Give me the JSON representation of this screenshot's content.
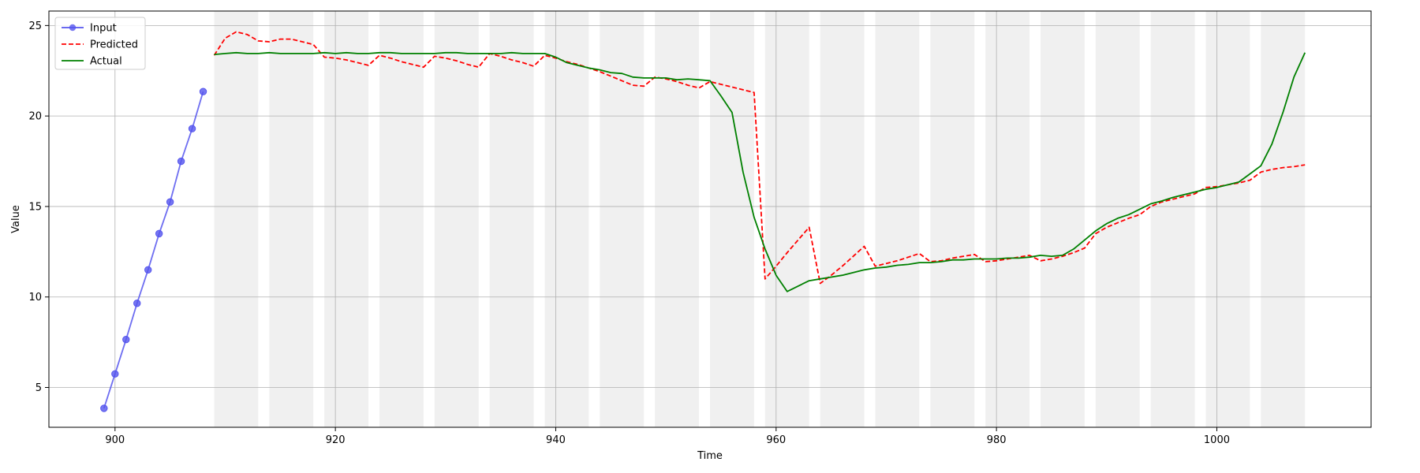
{
  "chart_data": {
    "type": "line",
    "xlabel": "Time",
    "ylabel": "Value",
    "xlim": [
      894,
      1014
    ],
    "ylim": [
      2.8,
      25.8
    ],
    "x_ticks": [
      900,
      920,
      940,
      960,
      980,
      1000
    ],
    "y_ticks": [
      5,
      10,
      15,
      20,
      25
    ],
    "x_tick_labels": [
      "900",
      "920",
      "940",
      "960",
      "980",
      "1000"
    ],
    "y_tick_labels": [
      "5",
      "10",
      "15",
      "20",
      "25"
    ],
    "grid": true,
    "legend_position": "upper-left",
    "shaded_bands": [
      [
        909,
        913
      ],
      [
        914,
        918
      ],
      [
        919,
        923
      ],
      [
        924,
        928
      ],
      [
        929,
        933
      ],
      [
        934,
        938
      ],
      [
        939,
        943
      ],
      [
        944,
        948
      ],
      [
        949,
        953
      ],
      [
        954,
        958
      ],
      [
        959,
        963
      ],
      [
        964,
        968
      ],
      [
        969,
        973
      ],
      [
        974,
        978
      ],
      [
        979,
        983
      ],
      [
        984,
        988
      ],
      [
        989,
        993
      ],
      [
        994,
        998
      ],
      [
        999,
        1003
      ],
      [
        1004,
        1008
      ]
    ],
    "series": [
      {
        "name": "Input",
        "color": "#5555ee",
        "style": "solid-markers",
        "x": [
          899,
          900,
          901,
          902,
          903,
          904,
          905,
          906,
          907,
          908
        ],
        "y": [
          3.85,
          5.75,
          7.65,
          9.65,
          11.5,
          13.5,
          15.25,
          17.5,
          19.3,
          21.35
        ]
      },
      {
        "name": "Predicted",
        "color": "#ff0000",
        "style": "dashed",
        "x": [
          909,
          910,
          911,
          912,
          913,
          914,
          915,
          916,
          917,
          918,
          919,
          920,
          921,
          922,
          923,
          924,
          925,
          926,
          927,
          928,
          929,
          930,
          931,
          932,
          933,
          934,
          935,
          936,
          937,
          938,
          939,
          940,
          941,
          942,
          943,
          944,
          945,
          946,
          947,
          948,
          949,
          950,
          951,
          952,
          953,
          954,
          955,
          956,
          957,
          958,
          959,
          960,
          961,
          962,
          963,
          964,
          965,
          966,
          967,
          968,
          969,
          970,
          971,
          972,
          973,
          974,
          975,
          976,
          977,
          978,
          979,
          980,
          981,
          982,
          983,
          984,
          985,
          986,
          987,
          988,
          989,
          990,
          991,
          992,
          993,
          994,
          995,
          996,
          997,
          998,
          999,
          1000,
          1001,
          1002,
          1003,
          1004,
          1005,
          1006,
          1007,
          1008
        ],
        "y": [
          23.35,
          24.3,
          24.65,
          24.5,
          24.15,
          24.1,
          24.25,
          24.25,
          24.1,
          23.95,
          23.25,
          23.2,
          23.1,
          22.95,
          22.8,
          23.35,
          23.2,
          23.0,
          22.85,
          22.7,
          23.3,
          23.2,
          23.05,
          22.85,
          22.7,
          23.45,
          23.3,
          23.1,
          22.95,
          22.75,
          23.35,
          23.2,
          23.0,
          22.85,
          22.65,
          22.45,
          22.2,
          21.95,
          21.7,
          21.65,
          22.15,
          22.05,
          21.9,
          21.7,
          21.55,
          21.9,
          21.75,
          21.6,
          21.45,
          21.3,
          11.0,
          11.7,
          12.45,
          13.15,
          13.85,
          10.75,
          11.2,
          11.7,
          12.25,
          12.8,
          11.7,
          11.85,
          12.0,
          12.2,
          12.4,
          11.95,
          12.0,
          12.15,
          12.25,
          12.35,
          11.95,
          12.0,
          12.1,
          12.2,
          12.3,
          12.0,
          12.1,
          12.25,
          12.45,
          12.7,
          13.5,
          13.85,
          14.1,
          14.35,
          14.55,
          15.0,
          15.25,
          15.4,
          15.55,
          15.7,
          16.05,
          16.1,
          16.2,
          16.3,
          16.45,
          16.9,
          17.05,
          17.15,
          17.2,
          17.3
        ]
      },
      {
        "name": "Actual",
        "color": "#008000",
        "style": "solid",
        "x": [
          909,
          910,
          911,
          912,
          913,
          914,
          915,
          916,
          917,
          918,
          919,
          920,
          921,
          922,
          923,
          924,
          925,
          926,
          927,
          928,
          929,
          930,
          931,
          932,
          933,
          934,
          935,
          936,
          937,
          938,
          939,
          940,
          941,
          942,
          943,
          944,
          945,
          946,
          947,
          948,
          949,
          950,
          951,
          952,
          953,
          954,
          955,
          956,
          957,
          958,
          959,
          960,
          961,
          962,
          963,
          964,
          965,
          966,
          967,
          968,
          969,
          970,
          971,
          972,
          973,
          974,
          975,
          976,
          977,
          978,
          979,
          980,
          981,
          982,
          983,
          984,
          985,
          986,
          987,
          988,
          989,
          990,
          991,
          992,
          993,
          994,
          995,
          996,
          997,
          998,
          999,
          1000,
          1001,
          1002,
          1003,
          1004,
          1005,
          1006,
          1007,
          1008
        ],
        "y": [
          23.4,
          23.45,
          23.5,
          23.45,
          23.45,
          23.5,
          23.45,
          23.45,
          23.45,
          23.45,
          23.5,
          23.45,
          23.5,
          23.45,
          23.45,
          23.5,
          23.5,
          23.45,
          23.45,
          23.45,
          23.45,
          23.5,
          23.5,
          23.45,
          23.45,
          23.45,
          23.45,
          23.5,
          23.45,
          23.45,
          23.45,
          23.25,
          22.95,
          22.8,
          22.65,
          22.55,
          22.4,
          22.35,
          22.15,
          22.1,
          22.1,
          22.1,
          22.0,
          22.05,
          22.0,
          21.95,
          21.1,
          20.2,
          16.9,
          14.4,
          12.65,
          11.2,
          10.3,
          10.6,
          10.9,
          11.0,
          11.1,
          11.2,
          11.35,
          11.5,
          11.6,
          11.65,
          11.75,
          11.8,
          11.9,
          11.9,
          11.95,
          12.05,
          12.05,
          12.1,
          12.1,
          12.1,
          12.15,
          12.15,
          12.2,
          12.3,
          12.25,
          12.3,
          12.65,
          13.15,
          13.65,
          14.05,
          14.35,
          14.55,
          14.85,
          15.15,
          15.3,
          15.5,
          15.65,
          15.8,
          15.95,
          16.05,
          16.2,
          16.35,
          16.8,
          17.25,
          18.45,
          20.2,
          22.15,
          23.5
        ]
      }
    ]
  }
}
